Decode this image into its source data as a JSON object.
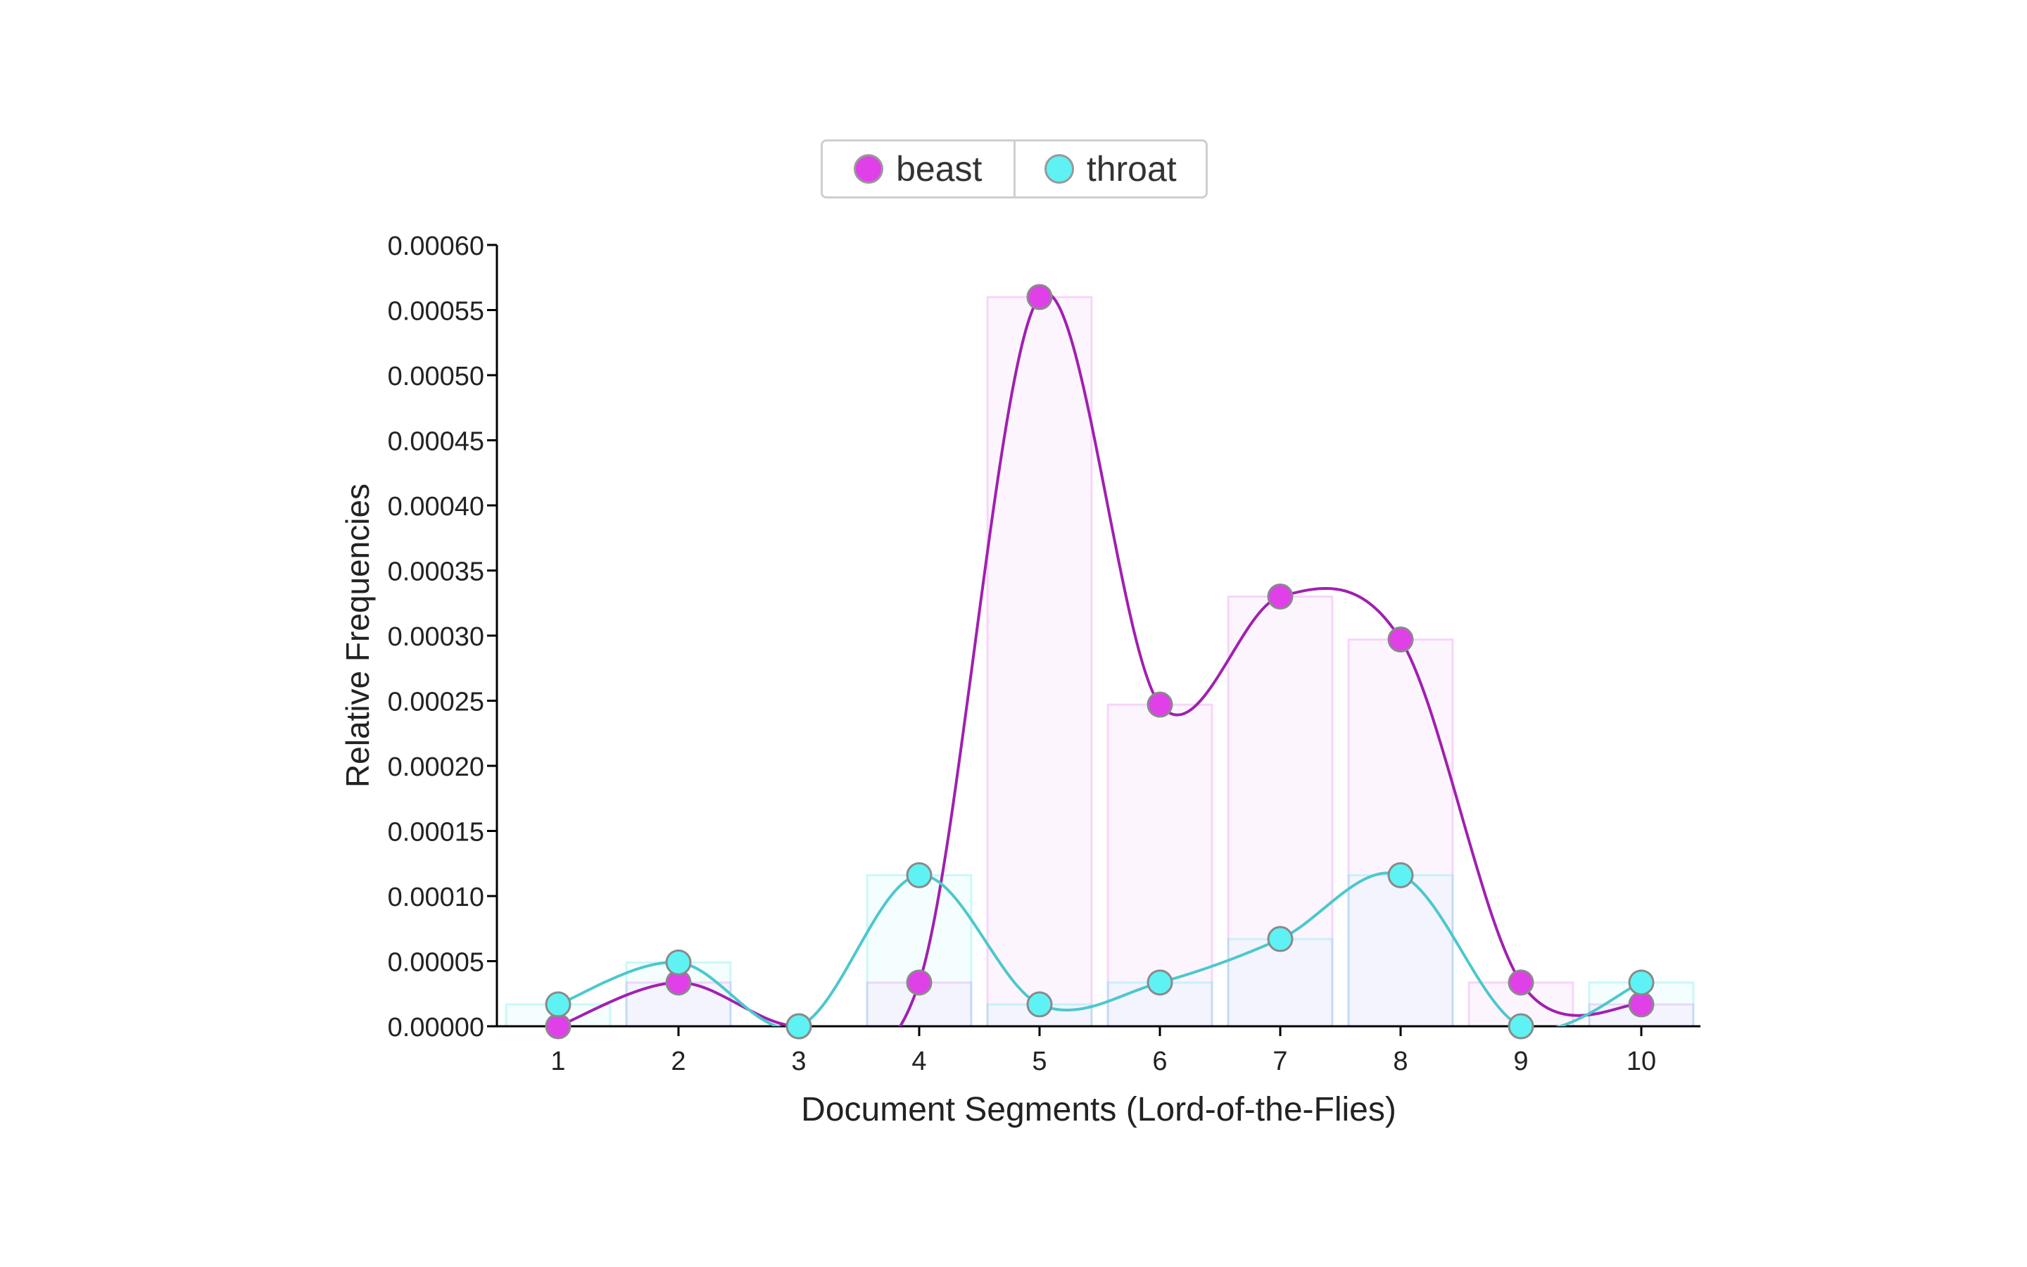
{
  "chart_data": {
    "type": "line",
    "xlabel": "Document Segments (Lord-of-the-Flies)",
    "ylabel": "Relative Frequencies",
    "categories": [
      "1",
      "2",
      "3",
      "4",
      "5",
      "6",
      "7",
      "8",
      "9",
      "10"
    ],
    "ylim": [
      0,
      0.0006
    ],
    "yticks": [
      "0.00000",
      "0.00005",
      "0.00010",
      "0.00015",
      "0.00020",
      "0.00025",
      "0.00030",
      "0.00035",
      "0.00040",
      "0.00045",
      "0.00050",
      "0.00055",
      "0.00060"
    ],
    "legend_position": "top-center",
    "bars_behind_lines": true,
    "grid": false,
    "series": [
      {
        "name": "beast",
        "color": "#e040e8",
        "line_color": "#a020b0",
        "values": [
          0.0,
          3.36e-05,
          0.0,
          3.36e-05,
          0.00056,
          0.000247,
          0.00033,
          0.000297,
          3.36e-05,
          1.68e-05
        ]
      },
      {
        "name": "throat",
        "color": "#5ef2f4",
        "line_color": "#4cc8cc",
        "values": [
          1.68e-05,
          4.9e-05,
          0.0,
          0.000116,
          1.68e-05,
          3.36e-05,
          6.7e-05,
          0.000116,
          0.0,
          3.36e-05
        ]
      }
    ]
  }
}
